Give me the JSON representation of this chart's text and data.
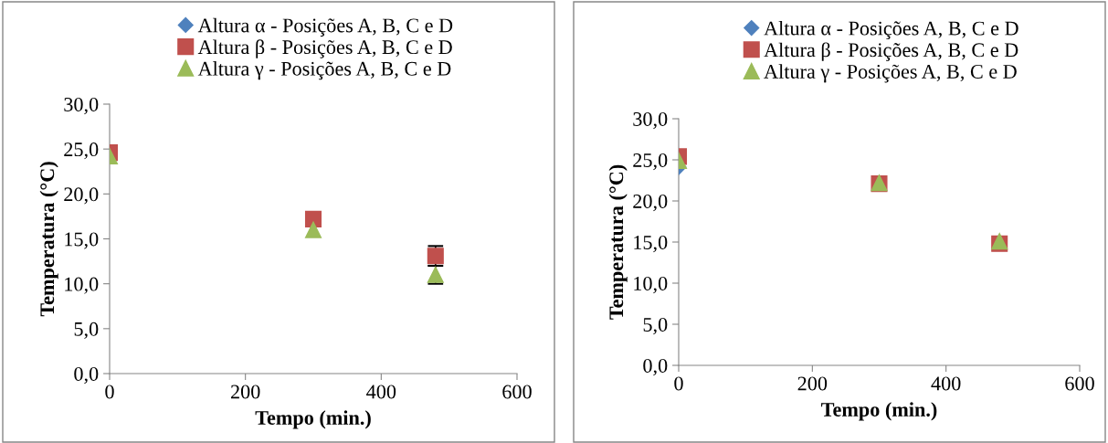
{
  "chart_data": [
    {
      "type": "scatter",
      "xlabel": "Tempo (min.)",
      "ylabel": "Temperatura (°C)",
      "x": [
        0,
        300,
        480
      ],
      "xlim": [
        0,
        600
      ],
      "xticks": [
        0,
        200,
        400,
        600
      ],
      "ylim": [
        0,
        30
      ],
      "yticks": [
        {
          "value": 0,
          "label": "0,0"
        },
        {
          "value": 5,
          "label": "5,0"
        },
        {
          "value": 10,
          "label": "10,0"
        },
        {
          "value": 15,
          "label": "15,0"
        },
        {
          "value": 20,
          "label": "20,0"
        },
        {
          "value": 25,
          "label": "25,0"
        },
        {
          "value": 30,
          "label": "30,0"
        }
      ],
      "grid": false,
      "legend": "top",
      "series": [
        {
          "name": "Altura α - Posições A, B, C e D",
          "color": "#4f81bd",
          "marker": "diamond",
          "values": [
            null,
            null,
            null
          ]
        },
        {
          "name": "Altura β - Posições A, B, C e D",
          "color": "#c0504d",
          "marker": "square",
          "values": [
            24.6,
            17.2,
            13.1
          ],
          "errors": [
            null,
            null,
            1.1
          ]
        },
        {
          "name": "Altura γ - Posições A, B, C e D",
          "color": "#9bbb59",
          "marker": "triangle",
          "values": [
            24.2,
            16.0,
            11.0
          ],
          "errors": [
            null,
            null,
            1.0
          ]
        }
      ]
    },
    {
      "type": "scatter",
      "xlabel": "Tempo (min.)",
      "ylabel": "Temperatura (°C)",
      "x": [
        0,
        300,
        480
      ],
      "xlim": [
        0,
        600
      ],
      "xticks": [
        0,
        200,
        400,
        600
      ],
      "ylim": [
        0,
        30
      ],
      "yticks": [
        {
          "value": 0,
          "label": "0,0"
        },
        {
          "value": 5,
          "label": "5,0"
        },
        {
          "value": 10,
          "label": "10,0"
        },
        {
          "value": 15,
          "label": "15,0"
        },
        {
          "value": 20,
          "label": "20,0"
        },
        {
          "value": 25,
          "label": "25,0"
        },
        {
          "value": 30,
          "label": "30,0"
        }
      ],
      "grid": false,
      "legend": "top",
      "series": [
        {
          "name": "Altura α - Posições A, B, C e D",
          "color": "#4f81bd",
          "marker": "diamond",
          "values": [
            24.1,
            null,
            null
          ]
        },
        {
          "name": "Altura β - Posições A, B, C e D",
          "color": "#c0504d",
          "marker": "square",
          "values": [
            25.4,
            22.1,
            14.8
          ]
        },
        {
          "name": "Altura γ - Posições A, B, C e D",
          "color": "#9bbb59",
          "marker": "triangle",
          "values": [
            24.9,
            22.2,
            15.1
          ]
        }
      ]
    }
  ]
}
